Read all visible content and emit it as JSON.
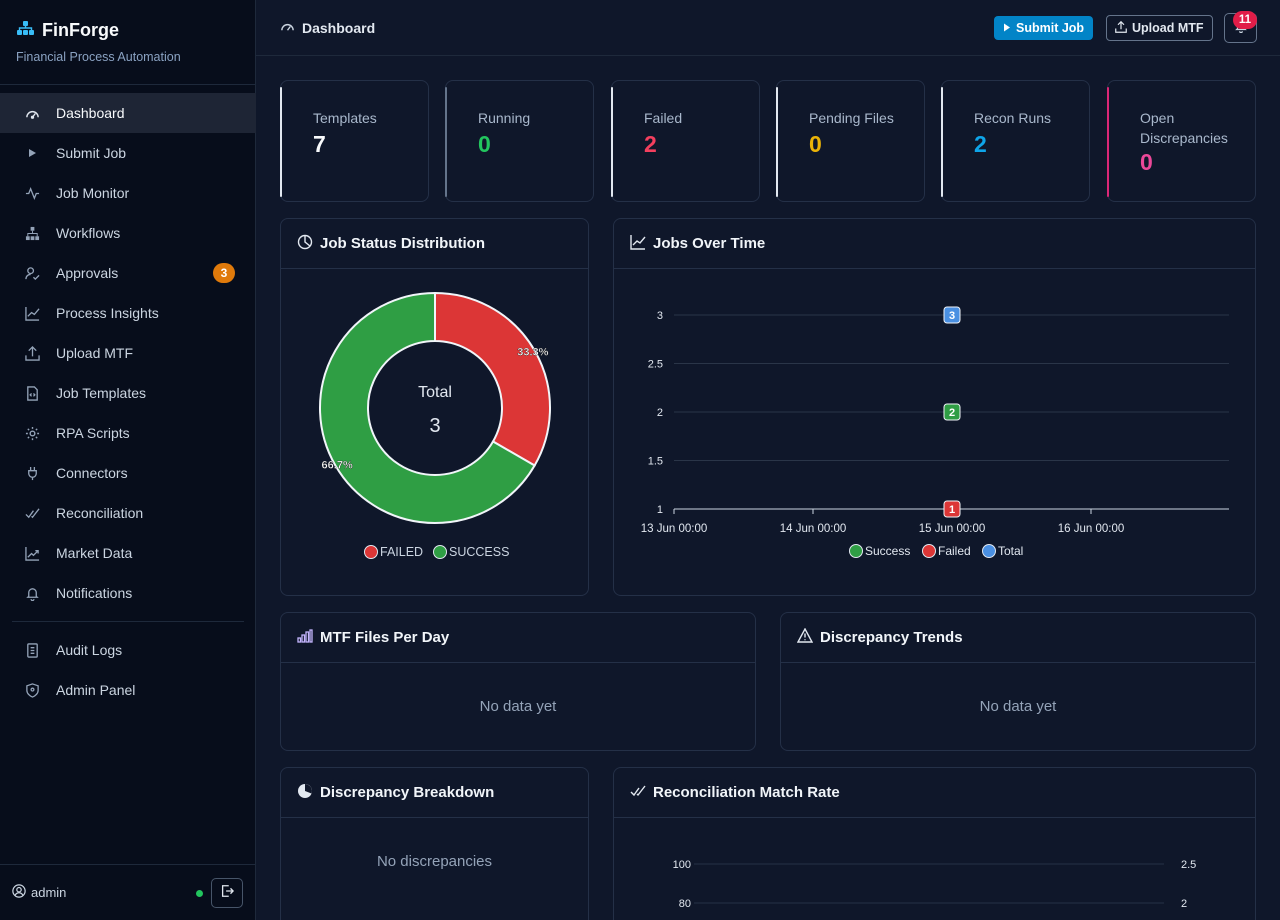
{
  "brand": {
    "name": "FinForge",
    "subtitle": "Financial Process Automation"
  },
  "nav": {
    "items": [
      {
        "label": "Dashboard",
        "icon": "gauge-icon",
        "active": true
      },
      {
        "label": "Submit Job",
        "icon": "play-icon"
      },
      {
        "label": "Job Monitor",
        "icon": "activity-icon"
      },
      {
        "label": "Workflows",
        "icon": "sitemap-icon"
      },
      {
        "label": "Approvals",
        "icon": "user-check-icon",
        "badge": "3"
      },
      {
        "label": "Process Insights",
        "icon": "line-chart-icon"
      },
      {
        "label": "Upload MTF",
        "icon": "upload-icon"
      },
      {
        "label": "Job Templates",
        "icon": "file-code-icon"
      },
      {
        "label": "RPA Scripts",
        "icon": "gear-icon"
      },
      {
        "label": "Connectors",
        "icon": "plug-icon"
      },
      {
        "label": "Reconciliation",
        "icon": "check-double-icon"
      },
      {
        "label": "Market Data",
        "icon": "trend-icon"
      },
      {
        "label": "Notifications",
        "icon": "bell-icon"
      }
    ],
    "secondary": [
      {
        "label": "Audit Logs",
        "icon": "journal-icon"
      },
      {
        "label": "Admin Panel",
        "icon": "shield-icon"
      }
    ]
  },
  "user": {
    "name": "admin",
    "status": "online"
  },
  "topbar": {
    "title": "Dashboard",
    "submit_label": "Submit Job",
    "upload_label": "Upload MTF",
    "notification_count": "11"
  },
  "stats": [
    {
      "label": "Templates",
      "value": "7",
      "color": "#f8fafc",
      "accent": "#e2e8f0"
    },
    {
      "label": "Running",
      "value": "0",
      "color": "#22c55e",
      "accent": "#64748b"
    },
    {
      "label": "Failed",
      "value": "2",
      "color": "#f43f5e",
      "accent": "#e2e8f0"
    },
    {
      "label": "Pending Files",
      "value": "0",
      "color": "#eab308",
      "accent": "#e2e8f0"
    },
    {
      "label": "Recon Runs",
      "value": "2",
      "color": "#0ea5e9",
      "accent": "#e2e8f0"
    },
    {
      "label": "Open Discrepancies",
      "value": "0",
      "color": "#ec4899",
      "accent": "#db2777"
    }
  ],
  "panels": {
    "job_status": {
      "title": "Job Status Distribution"
    },
    "jobs_over_time": {
      "title": "Jobs Over Time"
    },
    "mtf_files": {
      "title": "MTF Files Per Day",
      "empty": "No data yet"
    },
    "discrepancy_trends": {
      "title": "Discrepancy Trends",
      "empty": "No data yet"
    },
    "discrepancy_breakdown": {
      "title": "Discrepancy Breakdown",
      "empty": "No discrepancies"
    },
    "recon_match": {
      "title": "Reconciliation Match Rate"
    }
  },
  "chart_data": [
    {
      "type": "pie",
      "variant": "doughnut",
      "center_label": "Total",
      "center_value": "3",
      "slices": [
        {
          "name": "FAILED",
          "value": 1,
          "label": "33.3%",
          "color": "#dc3636"
        },
        {
          "name": "SUCCESS",
          "value": 2,
          "label": "66.7%",
          "color": "#2f9e44"
        }
      ],
      "legend": "bottom"
    },
    {
      "type": "line",
      "x_ticks": [
        "13 Jun 00:00",
        "14 Jun 00:00",
        "15 Jun 00:00",
        "16 Jun 00:00"
      ],
      "y_ticks": [
        "1",
        "1.5",
        "2",
        "2.5",
        "3"
      ],
      "ylim": [
        1,
        3
      ],
      "series": [
        {
          "name": "Success",
          "color": "#2f9e44",
          "points": [
            {
              "x": "15 Jun 00:00",
              "y": 2
            }
          ]
        },
        {
          "name": "Failed",
          "color": "#dc3636",
          "points": [
            {
              "x": "15 Jun 00:00",
              "y": 1
            }
          ]
        },
        {
          "name": "Total",
          "color": "#4a90e2",
          "points": [
            {
              "x": "15 Jun 00:00",
              "y": 3
            }
          ]
        }
      ],
      "legend": "bottom",
      "grid": true
    },
    {
      "type": "line",
      "y_ticks_left": [
        "80",
        "100"
      ],
      "y_ticks_right": [
        "2",
        "2.5"
      ],
      "grid": true
    }
  ]
}
